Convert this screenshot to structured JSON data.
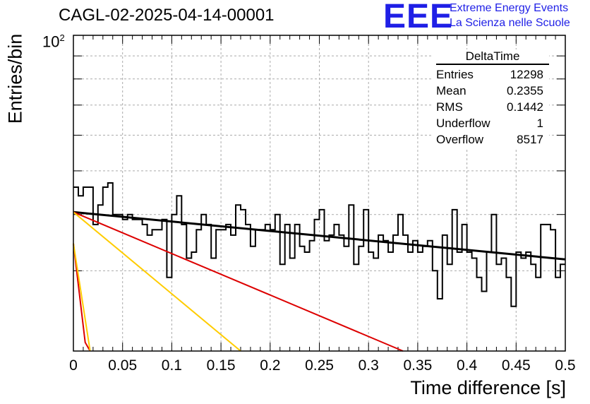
{
  "header": {
    "title": "CAGL-02-2025-04-14-00001",
    "logo_text": "EEE",
    "logo_line1": "Extreme Energy Events",
    "logo_line2": "La Scienza nelle Scuole"
  },
  "stats": {
    "name": "DeltaTime",
    "rows": [
      {
        "label": "Entries",
        "value": "12298"
      },
      {
        "label": "Mean",
        "value": "0.2355"
      },
      {
        "label": "RMS",
        "value": "0.1442"
      },
      {
        "label": "Underflow",
        "value": "1"
      },
      {
        "label": "Overflow",
        "value": "8517"
      }
    ]
  },
  "chart_data": {
    "type": "histogram",
    "xlabel": "Time difference [s]",
    "ylabel": "Entries/bin",
    "xlim": [
      0,
      0.5
    ],
    "ylim": [
      19.9,
      100
    ],
    "ylog": true,
    "grid": true,
    "y_tick_label": "10",
    "y_tick_exponent": "2",
    "x_ticks": [
      "0",
      "0.05",
      "0.1",
      "0.15",
      "0.2",
      "0.25",
      "0.3",
      "0.35",
      "0.4",
      "0.45",
      "0.5"
    ],
    "bin_width": 0.005,
    "histogram_values": [
      46,
      44,
      46,
      46,
      38,
      42,
      46,
      47,
      40,
      40,
      39,
      40,
      39,
      39,
      38,
      36,
      37,
      37,
      39,
      29,
      40,
      44,
      38,
      32,
      33,
      37,
      40,
      38,
      32,
      37,
      37,
      38,
      36,
      42,
      41,
      38,
      34,
      37,
      37,
      38,
      37,
      40,
      31,
      38,
      32,
      38,
      34,
      33,
      35,
      39,
      41,
      35,
      36,
      38,
      36,
      34,
      42,
      31,
      34,
      41,
      33,
      32,
      36,
      35,
      33,
      36,
      40,
      36,
      33,
      35,
      33,
      34,
      35,
      30,
      26,
      36,
      31,
      41,
      33,
      38,
      33,
      32,
      29,
      27,
      33,
      40,
      31,
      32,
      29,
      25,
      33,
      32,
      33,
      31,
      29,
      38,
      38,
      37,
      29,
      31
    ],
    "series": [
      {
        "name": "",
        "color": "#000000",
        "x": [
          0,
          0.5
        ],
        "y": [
          40.5,
          31.8
        ]
      },
      {
        "name": "",
        "color": "#dd0000",
        "x": [
          0,
          0.335
        ],
        "y": [
          40.5,
          19.9
        ]
      },
      {
        "name": "",
        "color": "#ffcc00",
        "x": [
          0,
          0.17
        ],
        "y": [
          40.5,
          19.9
        ]
      },
      {
        "name": "",
        "color": "#dd0000",
        "x": [
          0,
          0.012,
          0.017
        ],
        "y": [
          34.5,
          20.8,
          19.9
        ]
      },
      {
        "name": "",
        "color": "#ffcc00",
        "x": [
          0,
          0.017
        ],
        "y": [
          34.5,
          19.9
        ]
      }
    ]
  }
}
